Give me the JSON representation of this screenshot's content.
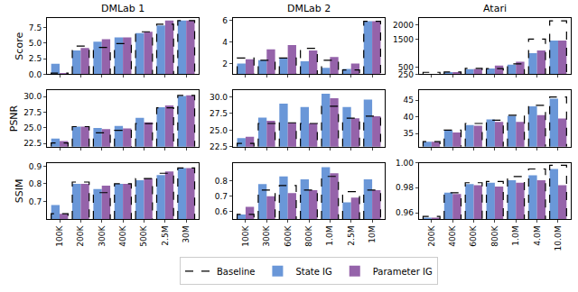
{
  "chart_data": [
    {
      "type": "bar",
      "title": "DMLab 1",
      "y_label": "Score",
      "tick_labels": "y",
      "legend": "bottom",
      "categories": [
        "100K",
        "200K",
        "300K",
        "400K",
        "500K",
        "2.5M",
        "30M"
      ],
      "ylim": [
        0,
        9
      ],
      "yticks": [
        {
          "value": 0,
          "label": "0.0"
        },
        2.5,
        {
          "value": 5,
          "label": "5.0"
        },
        7.5
      ],
      "series": [
        {
          "name": "Baseline",
          "color": "#000000",
          "line_style": "dashed",
          "values": [
            0.2,
            4.5,
            4.3,
            4.9,
            6.8,
            8.0,
            8.6
          ]
        },
        {
          "name": "State IG",
          "color": "#6a97d8",
          "values": [
            1.7,
            3.8,
            5.2,
            5.9,
            6.6,
            7.8,
            8.6
          ]
        },
        {
          "name": "Parameter IG",
          "color": "#9563aa",
          "values": [
            0.2,
            4.2,
            5.6,
            5.9,
            6.8,
            8.6,
            8.6
          ]
        }
      ]
    },
    {
      "type": "bar",
      "title": "DMLab 2",
      "tick_labels": "y",
      "legend": "bottom",
      "categories": [
        "100K",
        "300K",
        "600K",
        "800K",
        "1.0M",
        "2.5M",
        "10M"
      ],
      "ylim": [
        1,
        6.2
      ],
      "yticks": [
        2,
        4,
        6
      ],
      "series": [
        {
          "name": "Baseline",
          "color": "#000000",
          "line_style": "dashed",
          "values": [
            2.5,
            2.3,
            2.5,
            3.4,
            2.3,
            1.4,
            5.9
          ]
        },
        {
          "name": "State IG",
          "color": "#6a97d8",
          "values": [
            2.0,
            2.3,
            2.5,
            2.2,
            1.6,
            1.5,
            5.9
          ]
        },
        {
          "name": "Parameter IG",
          "color": "#9563aa",
          "values": [
            2.4,
            3.3,
            3.7,
            3.2,
            2.6,
            2.0,
            5.9
          ]
        }
      ]
    },
    {
      "type": "bar",
      "title": "Atari",
      "tick_labels": "y",
      "legend": "bottom",
      "categories": [
        "200K",
        "400K",
        "600K",
        "800K",
        "1.0M",
        "4.0M",
        "10.0M"
      ],
      "ylim": [
        250,
        2250
      ],
      "yticks": [
        250,
        500,
        1500,
        2000
      ],
      "series": [
        {
          "name": "Baseline",
          "color": "#000000",
          "line_style": "dashed",
          "values": [
            320,
            330,
            460,
            450,
            620,
            1500,
            2150
          ]
        },
        {
          "name": "State IG",
          "color": "#6a97d8",
          "values": [
            255,
            330,
            430,
            460,
            590,
            1000,
            1450
          ]
        },
        {
          "name": "Parameter IG",
          "color": "#9563aa",
          "values": [
            255,
            330,
            440,
            560,
            700,
            1100,
            1450
          ]
        }
      ]
    },
    {
      "type": "bar",
      "y_label": "PSNR",
      "tick_labels": "y",
      "legend": "bottom",
      "categories": [
        "100K",
        "200K",
        "300K",
        "400K",
        "500K",
        "2.5M",
        "30M"
      ],
      "ylim": [
        22,
        31
      ],
      "yticks": [
        22.5,
        {
          "value": 25,
          "label": "25.0"
        },
        27.5,
        {
          "value": 30,
          "label": "30.0"
        }
      ],
      "series": [
        {
          "name": "Baseline",
          "color": "#000000",
          "line_style": "dashed",
          "values": [
            22.6,
            25.2,
            24.2,
            24.6,
            25.7,
            28.2,
            30.2
          ]
        },
        {
          "name": "State IG",
          "color": "#6a97d8",
          "values": [
            23.3,
            25.2,
            25.0,
            25.3,
            26.6,
            28.3,
            30.1
          ]
        },
        {
          "name": "Parameter IG",
          "color": "#9563aa",
          "values": [
            22.9,
            25.2,
            24.8,
            24.9,
            25.9,
            28.6,
            30.2
          ]
        }
      ]
    },
    {
      "type": "bar",
      "tick_labels": "y",
      "legend": "bottom",
      "categories": [
        "100K",
        "300K",
        "600K",
        "800K",
        "1.0M",
        "2.5M",
        "10M"
      ],
      "ylim": [
        22.5,
        31
      ],
      "yticks": [
        22.5,
        {
          "value": 25,
          "label": "25.0"
        },
        27.5,
        {
          "value": 30,
          "label": "30.0"
        }
      ],
      "series": [
        {
          "name": "Baseline",
          "color": "#000000",
          "line_style": "dashed",
          "values": [
            23.0,
            26.0,
            26.1,
            26.0,
            28.6,
            26.8,
            27.1
          ]
        },
        {
          "name": "State IG",
          "color": "#6a97d8",
          "values": [
            23.8,
            26.9,
            29.0,
            28.5,
            30.5,
            28.5,
            29.6
          ]
        },
        {
          "name": "Parameter IG",
          "color": "#9563aa",
          "values": [
            24.0,
            26.4,
            26.1,
            26.0,
            29.8,
            26.8,
            27.1
          ]
        }
      ]
    },
    {
      "type": "bar",
      "tick_labels": "y",
      "legend": "bottom",
      "categories": [
        "200K",
        "400K",
        "600K",
        "800K",
        "1.0M",
        "4.0M",
        "10.0M"
      ],
      "ylim": [
        31,
        48
      ],
      "yticks": [
        35,
        40,
        45
      ],
      "series": [
        {
          "name": "Baseline",
          "color": "#000000",
          "line_style": "dashed",
          "values": [
            32.5,
            36.0,
            38.0,
            39.0,
            40.5,
            43.5,
            46.0
          ]
        },
        {
          "name": "State IG",
          "color": "#6a97d8",
          "values": [
            32.5,
            35.8,
            37.5,
            39.2,
            40.3,
            43.2,
            45.5
          ]
        },
        {
          "name": "Parameter IG",
          "color": "#9563aa",
          "values": [
            32.5,
            35.3,
            37.3,
            38.5,
            38.5,
            40.5,
            39.5
          ]
        }
      ]
    },
    {
      "type": "bar",
      "y_label": "SSIM",
      "legend": "bottom",
      "categories": [
        "100K",
        "200K",
        "300K",
        "400K",
        "500K",
        "2.5M",
        "30M"
      ],
      "ylim": [
        0.6,
        0.92
      ],
      "yticks": [
        0.7,
        0.8,
        0.9
      ],
      "series": [
        {
          "name": "Baseline",
          "color": "#000000",
          "line_style": "dashed",
          "values": [
            0.63,
            0.81,
            0.75,
            0.8,
            0.83,
            0.86,
            0.89
          ]
        },
        {
          "name": "State IG",
          "color": "#6a97d8",
          "values": [
            0.68,
            0.8,
            0.77,
            0.8,
            0.82,
            0.85,
            0.89
          ]
        },
        {
          "name": "Parameter IG",
          "color": "#9563aa",
          "values": [
            0.63,
            0.8,
            0.79,
            0.8,
            0.83,
            0.87,
            0.89
          ]
        }
      ]
    },
    {
      "type": "bar",
      "legend": "bottom",
      "categories": [
        "100K",
        "300K",
        "600K",
        "800K",
        "1.0M",
        "2.5M",
        "10M"
      ],
      "ylim": [
        0.55,
        0.92
      ],
      "yticks": [
        0.6,
        0.7,
        0.8
      ],
      "series": [
        {
          "name": "Baseline",
          "color": "#000000",
          "line_style": "dashed",
          "values": [
            0.58,
            0.74,
            0.77,
            0.74,
            0.83,
            0.73,
            0.74
          ]
        },
        {
          "name": "State IG",
          "color": "#6a97d8",
          "values": [
            0.58,
            0.78,
            0.83,
            0.81,
            0.89,
            0.66,
            0.81
          ]
        },
        {
          "name": "Parameter IG",
          "color": "#9563aa",
          "values": [
            0.63,
            0.7,
            0.72,
            0.74,
            0.85,
            0.69,
            0.74
          ]
        }
      ]
    },
    {
      "type": "bar",
      "legend": "bottom",
      "categories": [
        "200K",
        "400K",
        "600K",
        "800K",
        "1.0M",
        "4.0M",
        "10.0M"
      ],
      "ylim": [
        0.955,
        1.0
      ],
      "yticks": [
        0.96,
        0.98,
        {
          "value": 1.0,
          "label": "1.00"
        }
      ],
      "series": [
        {
          "name": "Baseline",
          "color": "#000000",
          "line_style": "dashed",
          "values": [
            0.957,
            0.976,
            0.984,
            0.985,
            0.989,
            0.995,
            0.998
          ]
        },
        {
          "name": "State IG",
          "color": "#6a97d8",
          "values": [
            0.956,
            0.976,
            0.983,
            0.984,
            0.986,
            0.99,
            0.995
          ]
        },
        {
          "name": "Parameter IG",
          "color": "#9563aa",
          "values": [
            0.956,
            0.975,
            0.982,
            0.981,
            0.984,
            0.986,
            0.982
          ]
        }
      ]
    }
  ]
}
